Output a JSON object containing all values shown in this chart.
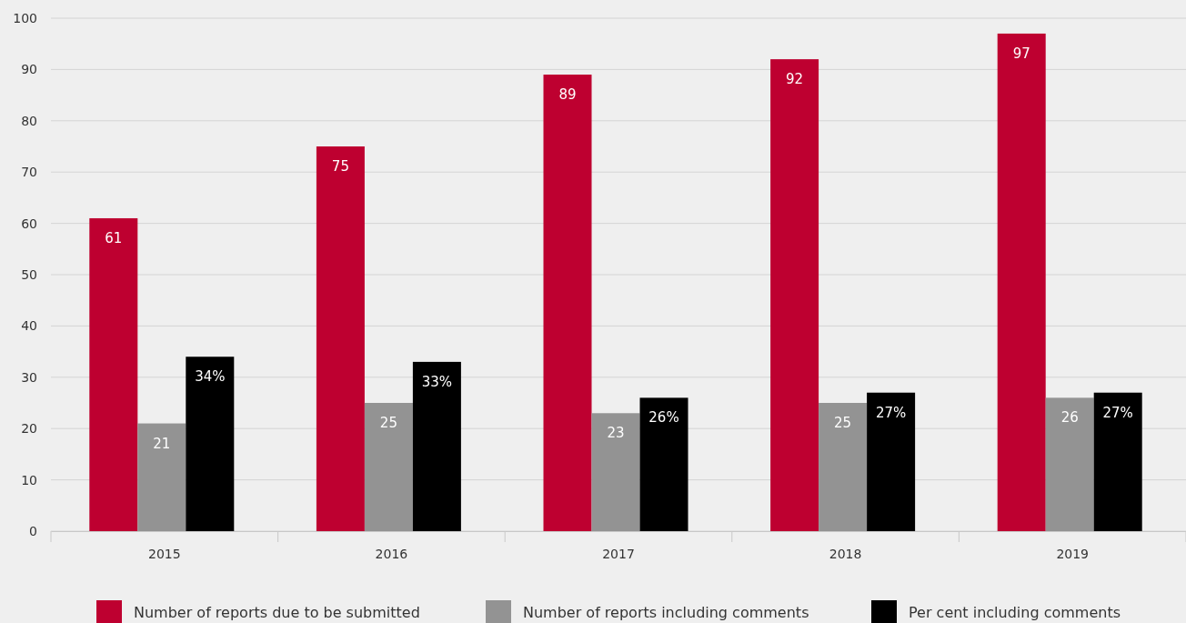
{
  "chart_data": {
    "type": "bar",
    "categories": [
      "2015",
      "2016",
      "2017",
      "2018",
      "2019"
    ],
    "series": [
      {
        "name": "Number of reports due to be submitted",
        "color": "#be0030",
        "values": [
          61,
          75,
          89,
          92,
          97
        ],
        "value_labels": [
          "61",
          "75",
          "89",
          "92",
          "97"
        ]
      },
      {
        "name": "Number of reports including comments",
        "color": "#939393",
        "values": [
          21,
          25,
          23,
          25,
          26
        ],
        "value_labels": [
          "21",
          "25",
          "23",
          "25",
          "26"
        ]
      },
      {
        "name": "Per cent including comments",
        "color": "#000000",
        "values": [
          34,
          33,
          26,
          27,
          27
        ],
        "value_labels": [
          "34%",
          "33%",
          "26%",
          "27%",
          "27%"
        ]
      }
    ],
    "ylim": [
      0,
      100
    ],
    "yticks": [
      0,
      10,
      20,
      30,
      40,
      50,
      60,
      70,
      80,
      90,
      100
    ],
    "grid": "y",
    "legend": "bottom"
  }
}
